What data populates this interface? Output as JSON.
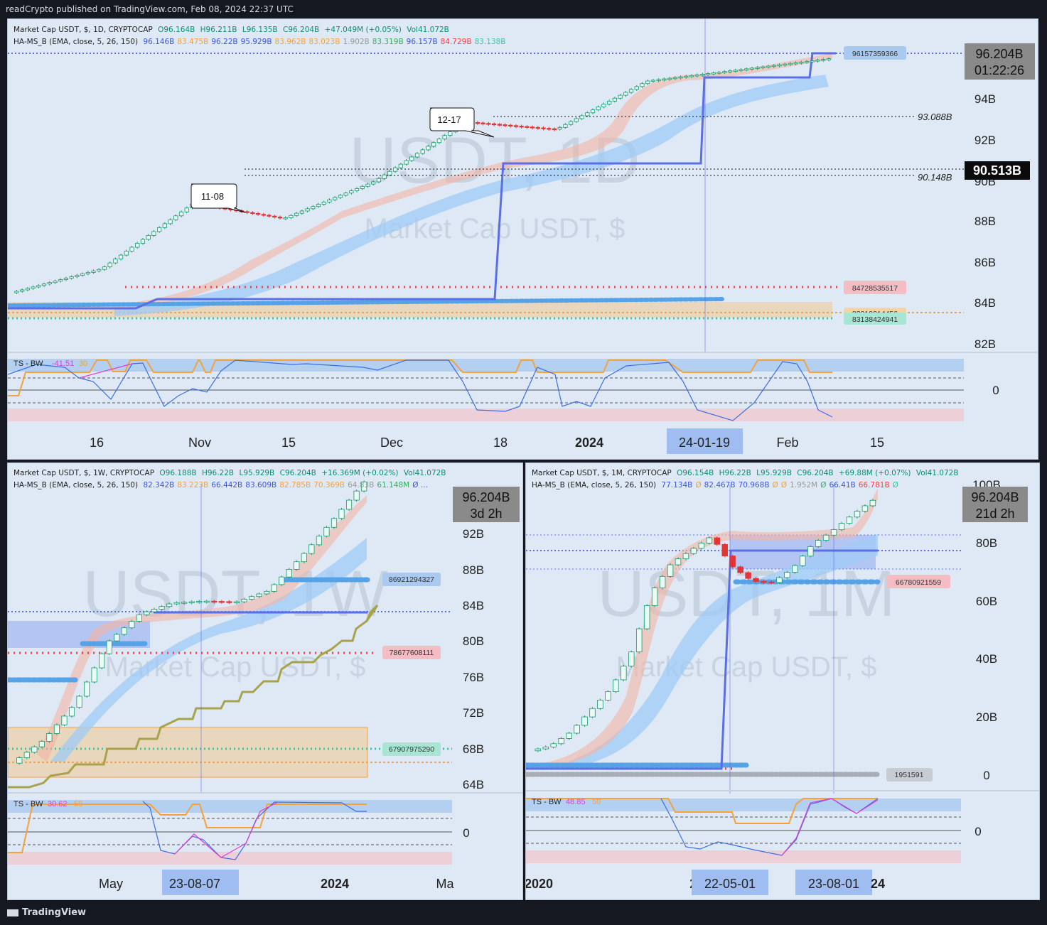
{
  "header": {
    "publisher": "readCrypto published on TradingView.com, Feb 08, 2024 22:37 UTC"
  },
  "footer": {
    "brand": "TradingView"
  },
  "colors": {
    "bg": "#dfe9f5",
    "band_blue": "#9fcbf5",
    "band_red": "#f3b4a4",
    "line_blue": "#5a6ee8",
    "dot_blue": "#55a3e6",
    "dot_red": "#ff3b3b",
    "dot_green": "#33c9a0",
    "orange": "#f6a13a",
    "olive": "#a8a34a"
  },
  "panels": {
    "daily": {
      "watermark_title": "USDT, 1D",
      "watermark_sub": "Market Cap USDT, $",
      "legend1": {
        "name": "Market Cap USDT, $, 1D, CRYPTOCAP",
        "o": "O96.164B",
        "h": "H96.211B",
        "l": "L96.135B",
        "c": "C96.204B",
        "chg": "+47.049M (+0.05%)",
        "vol": "Vol41.072B"
      },
      "legend2": {
        "name": "HA-MS_B (EMA, close, 5, 26, 150)",
        "values": [
          "96.146B",
          "83.475B",
          "96.22B",
          "95.929B",
          "83.962B",
          "83.023B",
          "1.902B",
          "83.319B",
          "96.157B",
          "84.729B",
          "83.138B"
        ]
      },
      "price_labels": [
        "96.204B",
        "01:22:26"
      ],
      "highlight_label": "90.513B",
      "level_labels": [
        "93.088B",
        "90.148B"
      ],
      "tag_labels": [
        "96157359366",
        "84728535517",
        "83218314456",
        "83138424941"
      ],
      "callouts": [
        "11-08",
        "12-17"
      ],
      "y_ticks": [
        "94B",
        "92B",
        "90B",
        "88B",
        "86B",
        "84B",
        "82B"
      ],
      "x_ticks": [
        "16",
        "Nov",
        "15",
        "Dec",
        "18",
        "2024",
        "24-01-19",
        "Feb",
        "15"
      ],
      "osc": {
        "label": "TS - BW",
        "v1": "-41.51",
        "v2": "30",
        "zero": "0"
      }
    },
    "weekly": {
      "watermark_title": "USDT, 1W",
      "watermark_sub": "Market Cap USDT, $",
      "legend1": {
        "name": "Market Cap USDT, $, 1W, CRYPTOCAP",
        "o": "O96.188B",
        "h": "H96.22B",
        "l": "L95.929B",
        "c": "C96.204B",
        "chg": "+16.369M (+0.02%)",
        "vol": "Vol41.072B"
      },
      "legend2": {
        "name": "HA-MS_B (EMA, close, 5, 26, 150)",
        "values": [
          "82.342B",
          "83.223B",
          "66.442B",
          "83.609B",
          "82.785B",
          "70.369B",
          "64.83B",
          "61.148M",
          "Ø ..."
        ]
      },
      "price_labels": [
        "96.204B",
        "3d 2h"
      ],
      "tag_labels": [
        "86921294327",
        "78677608111",
        "67907975290"
      ],
      "y_ticks": [
        "92B",
        "88B",
        "84B",
        "80B",
        "76B",
        "72B",
        "68B",
        "64B"
      ],
      "x_ticks": [
        "May",
        "23-08-07",
        "2024",
        "Ma"
      ],
      "osc": {
        "label": "TS - BW",
        "v1": "30.62",
        "v2": "50",
        "zero": "0"
      }
    },
    "monthly": {
      "watermark_title": "USDT, 1M",
      "watermark_sub": "Market Cap USDT, $",
      "legend1": {
        "name": "Market Cap USDT, $, 1M, CRYPTOCAP",
        "o": "O96.154B",
        "h": "H96.22B",
        "l": "L95.929B",
        "c": "C96.204B",
        "chg": "+69.88M (+0.07%)",
        "vol": "Vol41.072B"
      },
      "legend2": {
        "name": "HA-MS_B (EMA, close, 5, 26, 150)",
        "values": [
          "77.134B",
          "Ø",
          "82.467B",
          "70.968B",
          "Ø",
          "Ø",
          "1.952M",
          "Ø",
          "66.41B",
          "66.781B",
          "Ø"
        ]
      },
      "price_labels": [
        "96.204B",
        "21d 2h"
      ],
      "tag_labels": [
        "66780921559",
        "1951591"
      ],
      "y_ticks": [
        "100B",
        "80B",
        "60B",
        "40B",
        "20B",
        "0"
      ],
      "x_ticks": [
        "2020",
        "2",
        "22-05-01",
        "23-08-01",
        "24"
      ],
      "osc": {
        "label": "TS - BW",
        "v1": "48.85",
        "v2": "50",
        "zero": "0"
      }
    }
  },
  "chart_data": [
    {
      "type": "line",
      "title": "Market Cap USDT, $, 1D, CRYPTOCAP",
      "x": [
        "Oct 16",
        "Nov 1",
        "Nov 8",
        "Nov 15",
        "Dec 1",
        "Dec 17",
        "Jan 1",
        "Jan 19",
        "Feb 1",
        "Feb 8"
      ],
      "series": [
        {
          "name": "Market Cap USDT",
          "values": [
            83.6,
            84.9,
            88.4,
            87.6,
            89.6,
            92.8,
            92.4,
            95.0,
            95.6,
            96.2
          ]
        }
      ],
      "ylim": [
        81.5,
        96.8
      ],
      "levels": [
        93.088,
        90.513,
        90.148,
        84.729,
        83.475,
        83.138
      ]
    },
    {
      "type": "line",
      "title": "Market Cap USDT, $, 1W, CRYPTOCAP",
      "series": [
        {
          "name": "Market Cap USDT",
          "values": [
            66.0,
            68.5,
            72.5,
            79.0,
            82.0,
            83.2,
            83.4,
            83.3,
            84.5,
            88.0,
            92.0,
            96.2
          ]
        }
      ],
      "ylim": [
        63.5,
        95.0
      ]
    },
    {
      "type": "line",
      "title": "Market Cap USDT, $, 1M, CRYPTOCAP",
      "series": [
        {
          "name": "Market Cap USDT",
          "values": [
            4.2,
            6.0,
            11.0,
            19.0,
            27.0,
            40.0,
            62.0,
            73.0,
            78.0,
            83.0,
            72.0,
            66.5,
            66.0,
            71.0,
            80.0,
            85.0,
            91.0,
            96.2
          ]
        }
      ],
      "ylim": [
        -5,
        102
      ]
    }
  ]
}
